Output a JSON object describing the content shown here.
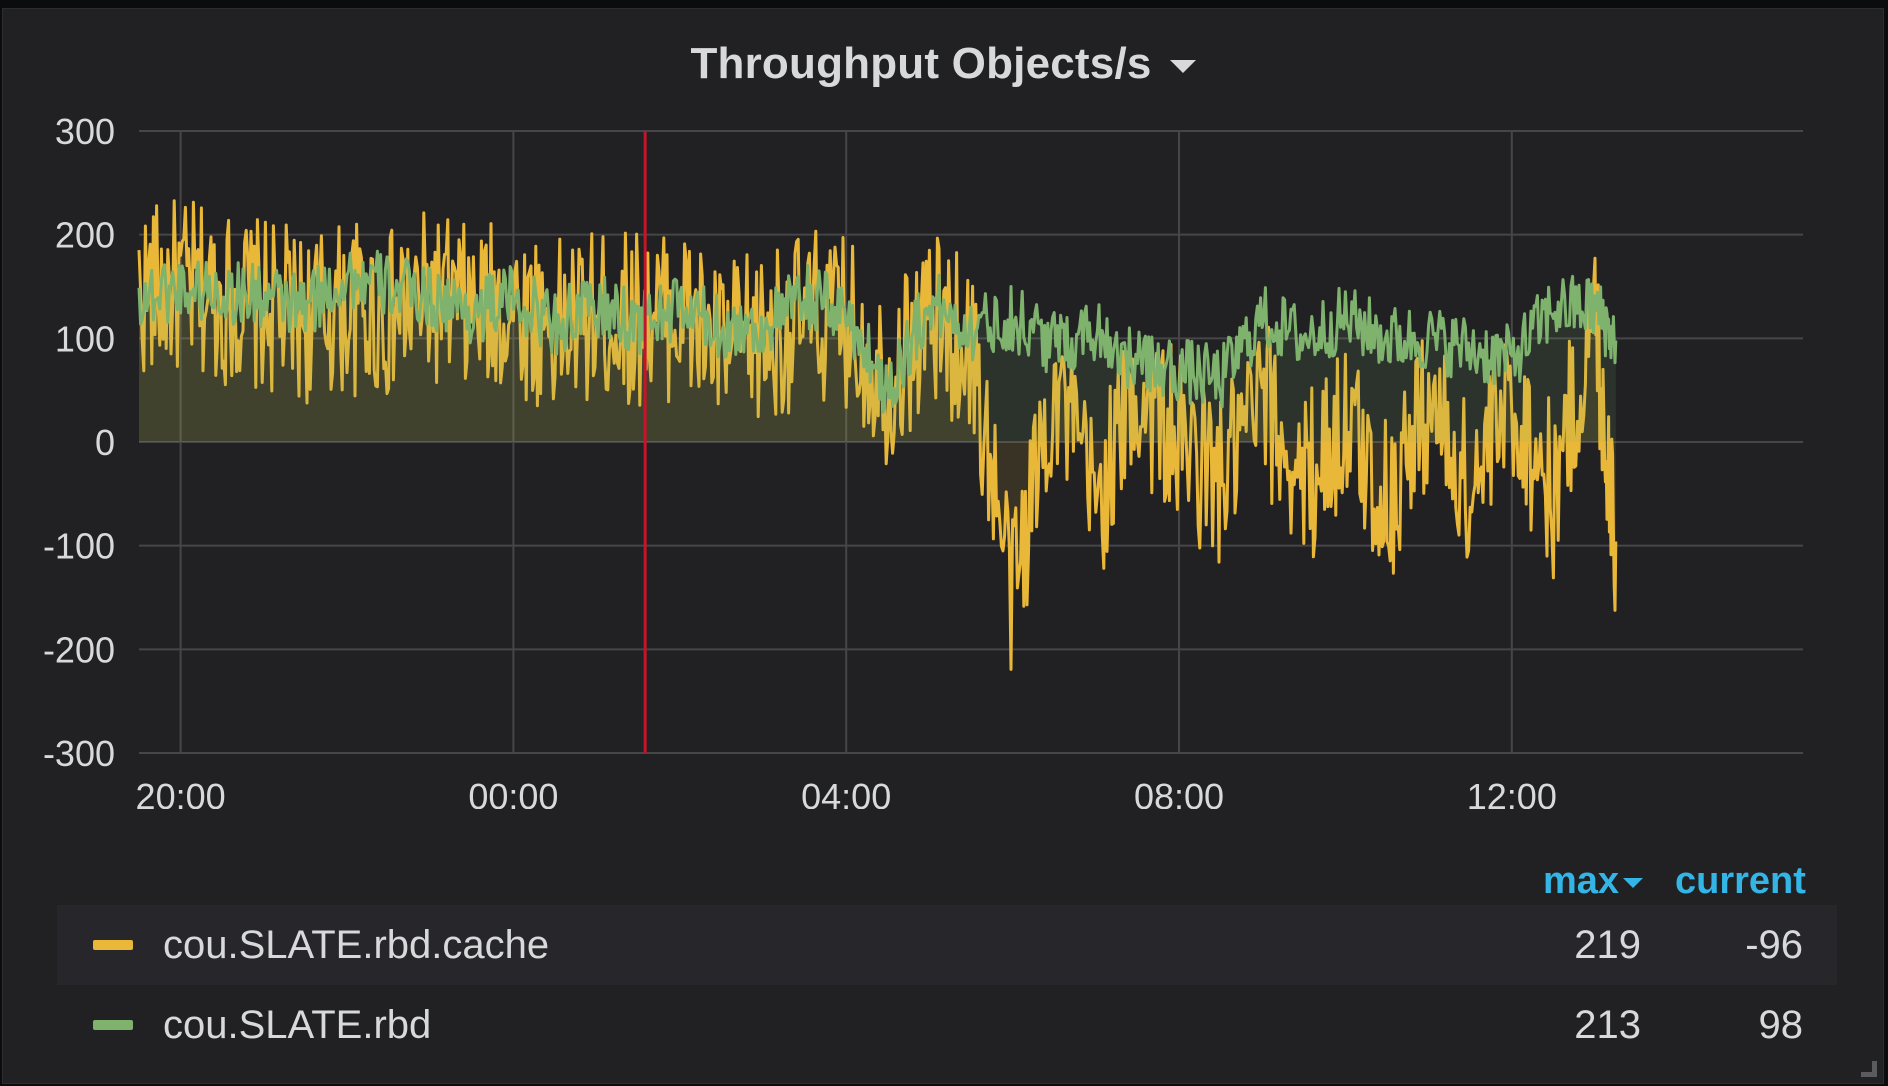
{
  "panel": {
    "title": "Throughput Objects/s"
  },
  "chart_data": {
    "type": "line",
    "title": "Throughput Objects/s",
    "xlabel": "",
    "ylabel": "",
    "ylim": [
      -300,
      300
    ],
    "yticks": [
      "300",
      "200",
      "100",
      "0",
      "-100",
      "-200",
      "-300"
    ],
    "xlim": [
      "19:30",
      "15:30"
    ],
    "xticks": [
      "20:00",
      "00:00",
      "04:00",
      "08:00",
      "12:00"
    ],
    "grid": true,
    "fill": true,
    "annotation": {
      "time": "01:35",
      "color": "#c4162a"
    },
    "x": [
      "19:30",
      "20:00",
      "20:30",
      "21:00",
      "21:30",
      "22:00",
      "22:30",
      "23:00",
      "23:30",
      "00:00",
      "00:30",
      "01:00",
      "01:30",
      "02:00",
      "02:30",
      "03:00",
      "03:30",
      "04:00",
      "04:30",
      "05:00",
      "05:30",
      "06:00",
      "06:30",
      "07:00",
      "07:30",
      "08:00",
      "08:30",
      "09:00",
      "09:30",
      "10:00",
      "10:30",
      "11:00",
      "11:30",
      "12:00",
      "12:30",
      "13:00",
      "13:15"
    ],
    "series": [
      {
        "name": "cou.SLATE.rbd.cache",
        "color": "#eab839",
        "values": [
          145,
          150,
          140,
          130,
          120,
          130,
          120,
          140,
          125,
          130,
          110,
          120,
          120,
          125,
          90,
          100,
          120,
          115,
          60,
          120,
          90,
          -150,
          60,
          -60,
          50,
          0,
          -40,
          40,
          -40,
          20,
          -60,
          40,
          -50,
          40,
          -50,
          120,
          -96
        ]
      },
      {
        "name": "cou.SLATE.rbd",
        "color": "#7eb26d",
        "values": [
          140,
          150,
          145,
          140,
          130,
          160,
          150,
          140,
          125,
          140,
          115,
          130,
          115,
          130,
          110,
          110,
          140,
          125,
          50,
          135,
          110,
          120,
          95,
          110,
          75,
          70,
          60,
          120,
          100,
          120,
          100,
          100,
          90,
          80,
          130,
          130,
          98
        ]
      }
    ]
  },
  "legend": {
    "col_max": "max",
    "col_current": "current",
    "rows": [
      {
        "name": "cou.SLATE.rbd.cache",
        "color": "#eab839",
        "max": "219",
        "current": "-96"
      },
      {
        "name": "cou.SLATE.rbd",
        "color": "#7eb26d",
        "max": "213",
        "current": "98"
      }
    ]
  }
}
